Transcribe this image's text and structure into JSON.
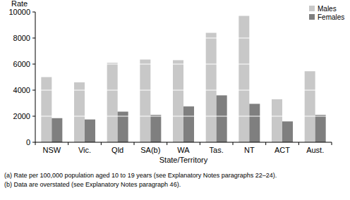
{
  "chart_data": {
    "type": "bar",
    "y_label": "Rate",
    "x_label": "State/Territory",
    "categories": [
      "NSW",
      "Vic.",
      "Qld",
      "SA(b)",
      "WA",
      "Tas.",
      "NT",
      "ACT",
      "Aust."
    ],
    "series": [
      {
        "name": "Males",
        "color": "#c8c8c8",
        "values": [
          5000,
          4600,
          6100,
          6350,
          6300,
          8400,
          9700,
          3300,
          5450
        ]
      },
      {
        "name": "Females",
        "color": "#7f7f7f",
        "values": [
          1850,
          1750,
          2350,
          2100,
          2750,
          3600,
          2950,
          1600,
          2100
        ]
      }
    ],
    "ylim": [
      0,
      10000
    ],
    "yticks": [
      0,
      2000,
      4000,
      6000,
      8000,
      10000
    ],
    "grid": true,
    "legend": "top-right",
    "notes": [
      "(a) Rate per 100,000 population aged 10 to 19 years (see Explanatory Notes paragraphs 22–24).",
      "(b) Data are overstated (see Explanatory Notes paragraph 46)."
    ]
  }
}
